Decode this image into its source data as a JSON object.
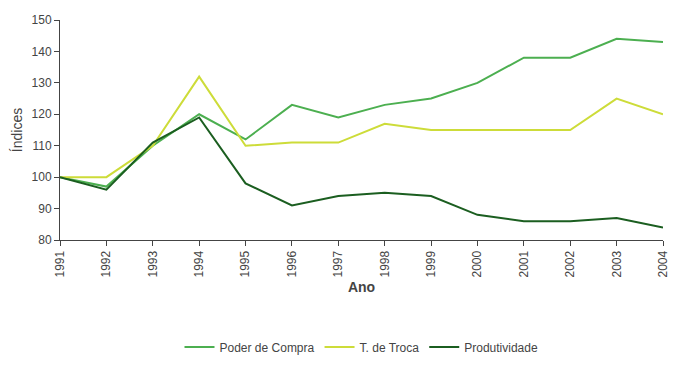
{
  "chart_data": {
    "type": "line",
    "x": [
      1991,
      1992,
      1993,
      1994,
      1995,
      1996,
      1997,
      1998,
      1999,
      2000,
      2001,
      2002,
      2003,
      2004
    ],
    "series": [
      {
        "name": "Poder de Compra",
        "color": "#4CAF50",
        "values": [
          100,
          97,
          110,
          120,
          112,
          123,
          119,
          123,
          125,
          130,
          138,
          138,
          144,
          143
        ]
      },
      {
        "name": "T. de Troca",
        "color": "#CDDC39",
        "values": [
          100,
          100,
          110,
          132,
          110,
          111,
          111,
          117,
          115,
          115,
          115,
          115,
          125,
          120
        ]
      },
      {
        "name": "Produtividade",
        "color": "#1B5E20",
        "values": [
          100,
          96,
          111,
          119,
          98,
          91,
          94,
          95,
          94,
          88,
          86,
          86,
          87,
          84
        ]
      }
    ],
    "xlabel": "Ano",
    "ylabel": "Índices",
    "xlim": [
      1991,
      2004
    ],
    "xticks": [
      1991,
      1992,
      1993,
      1994,
      1995,
      1996,
      1997,
      1998,
      1999,
      2000,
      2001,
      2002,
      2003,
      2004
    ],
    "ylim": [
      80,
      150
    ],
    "yticks": [
      80,
      90,
      100,
      110,
      120,
      130,
      140,
      150
    ],
    "grid": false,
    "legend": "bottom"
  }
}
